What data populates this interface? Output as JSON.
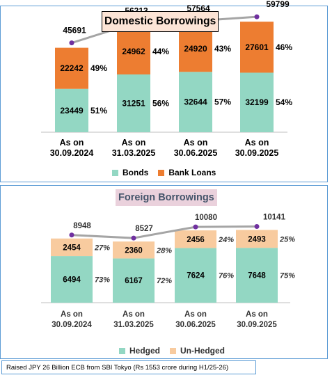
{
  "colors": {
    "bonds": "#93d7c3",
    "bank_loans": "#ed7d31",
    "hedged": "#93d7c3",
    "unhedged": "#f8cb9f",
    "total_line": "#a5a5a5",
    "total_marker": "#7030a0"
  },
  "footer_note": "Raised JPY 26 Billion ECB from SBI Tokyo (Rs 1553 crore during H1/25-26)",
  "chart_data": [
    {
      "type": "bar",
      "stacked": true,
      "title": "Domestic Borrowings",
      "categories": [
        "As on\n30.09.2024",
        "As on\n31.03.2025",
        "As on\n30.06.2025",
        "As on\n30.09.2025"
      ],
      "series": [
        {
          "name": "Bonds",
          "values": [
            23449,
            31251,
            32644,
            32199
          ],
          "shares": [
            "51%",
            "56%",
            "57%",
            "54%"
          ]
        },
        {
          "name": "Bank Loans",
          "values": [
            22242,
            24962,
            24920,
            27601
          ],
          "shares": [
            "49%",
            "44%",
            "43%",
            "46%"
          ]
        }
      ],
      "totals": [
        45691,
        56213,
        57564,
        59799
      ],
      "legend_position": "bottom",
      "ylim": [
        0,
        65000
      ],
      "grid": false
    },
    {
      "type": "bar",
      "stacked": true,
      "title": "Foreign Borrowings",
      "categories": [
        "As on\n30.09.2024",
        "As on\n31.03.2025",
        "As on\n30.06.2025",
        "As on\n30.09.2025"
      ],
      "series": [
        {
          "name": "Hedged",
          "values": [
            6494,
            6167,
            7624,
            7648
          ],
          "shares": [
            "73%",
            "72%",
            "76%",
            "75%"
          ]
        },
        {
          "name": "Un-Hedged",
          "values": [
            2454,
            2360,
            2456,
            2493
          ],
          "shares": [
            "27%",
            "28%",
            "24%",
            "25%"
          ]
        }
      ],
      "totals": [
        8948,
        8527,
        10080,
        10141
      ],
      "legend_position": "bottom",
      "ylim": [
        0,
        11500
      ],
      "grid": false
    }
  ]
}
